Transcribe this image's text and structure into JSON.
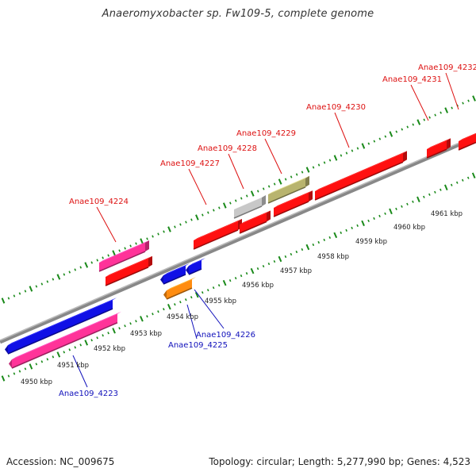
{
  "title": "Anaeromyxobacter sp. Fw109-5, complete genome",
  "accession": "Accession: NC_009675",
  "summary": "Topology: circular; Length: 5,277,990 bp; Genes: 4,523",
  "colors": {
    "forward_gene": "#ff1010",
    "reverse_gene": "#1010e6",
    "pink_gene": "#ff3399",
    "grey_gene": "#c8c8c8",
    "olive_gene": "#b8b46e",
    "orange_gene": "#ff8c10",
    "backbone": "#888888",
    "tick": "#1a8a1a",
    "forward_label": "#dd1111",
    "reverse_label": "#1111bb"
  },
  "scale_labels": [
    "4950 kbp",
    "4951 kbp",
    "4952 kbp",
    "4953 kbp",
    "4954 kbp",
    "4955 kbp",
    "4956 kbp",
    "4957 kbp",
    "4958 kbp",
    "4959 kbp",
    "4960 kbp",
    "4961 kbp"
  ],
  "gene_labels": [
    {
      "text": "Anae109_4223",
      "strand": "reverse"
    },
    {
      "text": "Anae109_4224",
      "strand": "forward"
    },
    {
      "text": "Anae109_4225",
      "strand": "reverse"
    },
    {
      "text": "Anae109_4226",
      "strand": "reverse"
    },
    {
      "text": "Anae109_4227",
      "strand": "forward"
    },
    {
      "text": "Anae109_4228",
      "strand": "forward"
    },
    {
      "text": "Anae109_4229",
      "strand": "forward"
    },
    {
      "text": "Anae109_4230",
      "strand": "forward"
    },
    {
      "text": "Anae109_4231",
      "strand": "forward"
    },
    {
      "text": "Anae109_4232",
      "strand": "forward"
    }
  ]
}
